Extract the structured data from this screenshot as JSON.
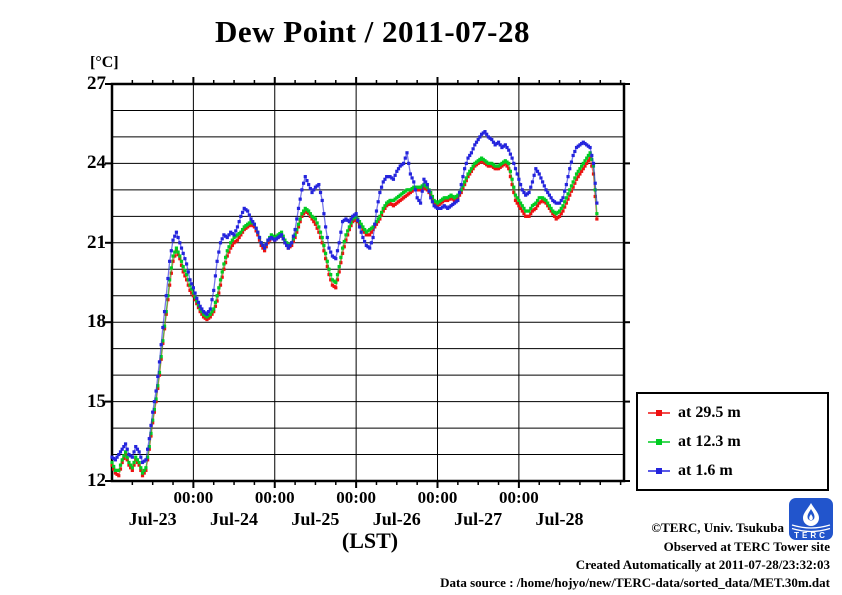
{
  "title": "Dew Point / 2011-07-28",
  "y_unit": "[°C]",
  "x_label": "(LST)",
  "legend": [
    {
      "label": "at 29.5 m",
      "color": "#ee1111"
    },
    {
      "label": "at 12.3 m",
      "color": "#00cc22"
    },
    {
      "label": "at 1.6 m",
      "color": "#2424dd"
    }
  ],
  "footer": {
    "copyright": "©TERC, Univ. Tsukuba",
    "observed": "Observed at TERC Tower site",
    "created": "Created Automatically at 2011-07-28/23:32:03",
    "datasource": "Data source : /home/hojyo/new/TERC-data/sorted_data/MET.30m.dat"
  },
  "logo_text": "TERC",
  "chart_data": {
    "type": "line",
    "title": "Dew Point / 2011-07-28",
    "xlabel": "(LST)",
    "ylabel": "[°C]",
    "ylim": [
      12,
      27
    ],
    "y_major_ticks": [
      12,
      15,
      18,
      21,
      24,
      27
    ],
    "y_grid_step": 1,
    "x_start": "2011-07-23 00:00 LST",
    "x_step_hours": 1,
    "x_hours_range": [
      0,
      151
    ],
    "x_minor_tick_hours": 6,
    "x_major_tick_label": "00:00",
    "x_day_labels": [
      "Jul-23",
      "Jul-24",
      "Jul-25",
      "Jul-26",
      "Jul-27",
      "Jul-28"
    ],
    "grid": true,
    "legend_position": "outside-right-bottom",
    "series": [
      {
        "name": "at 29.5 m",
        "height_m": 29.5,
        "color": "#ee1111",
        "values": [
          12.6,
          12.3,
          12.2,
          12.7,
          13.0,
          12.6,
          12.4,
          12.8,
          12.6,
          12.2,
          12.4,
          13.2,
          14.2,
          15.0,
          16.0,
          17.2,
          18.3,
          19.4,
          20.3,
          20.7,
          20.4,
          19.9,
          19.6,
          19.2,
          19.0,
          18.7,
          18.4,
          18.2,
          18.1,
          18.2,
          18.4,
          18.8,
          19.4,
          20.0,
          20.5,
          20.8,
          21.0,
          21.1,
          21.3,
          21.5,
          21.6,
          21.7,
          21.6,
          21.3,
          20.9,
          20.7,
          21.0,
          21.2,
          21.1,
          21.2,
          21.3,
          21.0,
          20.8,
          20.9,
          21.2,
          21.6,
          22.0,
          22.2,
          22.1,
          21.9,
          21.7,
          21.4,
          21.0,
          20.4,
          19.8,
          19.4,
          19.3,
          19.9,
          20.6,
          21.1,
          21.5,
          21.8,
          21.9,
          21.7,
          21.5,
          21.3,
          21.3,
          21.5,
          21.7,
          21.9,
          22.2,
          22.4,
          22.5,
          22.4,
          22.5,
          22.6,
          22.7,
          22.8,
          22.9,
          23.0,
          23.0,
          23.0,
          23.1,
          23.0,
          22.8,
          22.5,
          22.4,
          22.5,
          22.6,
          22.6,
          22.7,
          22.6,
          22.7,
          22.9,
          23.2,
          23.5,
          23.7,
          23.9,
          24.0,
          24.1,
          24.0,
          23.9,
          23.9,
          23.8,
          23.8,
          23.9,
          24.0,
          23.8,
          23.2,
          22.6,
          22.4,
          22.2,
          22.0,
          22.0,
          22.2,
          22.3,
          22.5,
          22.6,
          22.5,
          22.3,
          22.1,
          21.9,
          22.0,
          22.2,
          22.5,
          22.8,
          23.1,
          23.4,
          23.6,
          23.8,
          24.0,
          24.2,
          23.6,
          21.9
        ]
      },
      {
        "name": "at 12.3 m",
        "height_m": 12.3,
        "color": "#00cc22",
        "values": [
          12.7,
          12.4,
          12.4,
          12.8,
          13.1,
          12.7,
          12.5,
          12.9,
          12.7,
          12.3,
          12.5,
          13.3,
          14.3,
          15.1,
          16.1,
          17.3,
          18.4,
          19.6,
          20.5,
          20.8,
          20.5,
          20.1,
          19.8,
          19.4,
          19.1,
          18.8,
          18.5,
          18.3,
          18.2,
          18.3,
          18.5,
          19.0,
          19.6,
          20.2,
          20.7,
          21.0,
          21.2,
          21.3,
          21.4,
          21.6,
          21.7,
          21.8,
          21.7,
          21.4,
          21.0,
          20.8,
          21.1,
          21.3,
          21.2,
          21.3,
          21.4,
          21.1,
          20.9,
          21.0,
          21.3,
          21.7,
          22.1,
          22.3,
          22.2,
          22.0,
          21.9,
          21.6,
          21.2,
          20.6,
          20.0,
          19.6,
          19.5,
          20.1,
          20.8,
          21.3,
          21.6,
          21.9,
          22.0,
          21.8,
          21.6,
          21.4,
          21.5,
          21.6,
          21.8,
          22.0,
          22.3,
          22.5,
          22.6,
          22.6,
          22.7,
          22.8,
          22.9,
          23.0,
          23.0,
          23.1,
          23.1,
          23.1,
          23.2,
          23.1,
          22.9,
          22.6,
          22.5,
          22.6,
          22.7,
          22.7,
          22.8,
          22.7,
          22.8,
          23.0,
          23.3,
          23.6,
          23.8,
          24.0,
          24.1,
          24.2,
          24.1,
          24.0,
          24.0,
          23.9,
          23.9,
          24.0,
          24.1,
          24.0,
          23.4,
          22.8,
          22.6,
          22.4,
          22.2,
          22.2,
          22.4,
          22.5,
          22.7,
          22.7,
          22.6,
          22.4,
          22.2,
          22.1,
          22.2,
          22.4,
          22.7,
          23.0,
          23.3,
          23.6,
          23.8,
          24.0,
          24.2,
          24.4,
          23.9,
          22.1
        ]
      },
      {
        "name": "at 1.6 m",
        "height_m": 1.6,
        "color": "#2424dd",
        "values": [
          12.9,
          12.8,
          13.0,
          13.2,
          13.4,
          13.0,
          12.9,
          13.3,
          13.1,
          12.7,
          12.8,
          13.6,
          14.6,
          15.4,
          16.5,
          17.8,
          19.0,
          20.3,
          21.1,
          21.4,
          21.0,
          20.6,
          20.2,
          19.6,
          19.3,
          18.9,
          18.6,
          18.4,
          18.3,
          18.5,
          19.2,
          20.3,
          21.0,
          21.3,
          21.2,
          21.4,
          21.3,
          21.6,
          22.0,
          22.3,
          22.2,
          21.9,
          21.7,
          21.4,
          21.0,
          20.8,
          21.1,
          21.2,
          21.1,
          21.2,
          21.3,
          21.0,
          20.8,
          21.0,
          21.5,
          22.3,
          23.0,
          23.5,
          23.2,
          22.9,
          23.1,
          23.2,
          22.6,
          21.6,
          20.8,
          20.5,
          20.4,
          21.0,
          21.8,
          21.9,
          21.8,
          22.0,
          22.1,
          21.6,
          21.2,
          20.9,
          20.8,
          21.2,
          22.2,
          22.9,
          23.3,
          23.5,
          23.5,
          23.4,
          23.7,
          23.9,
          24.0,
          24.4,
          23.6,
          23.3,
          22.7,
          22.5,
          23.4,
          23.2,
          22.7,
          22.4,
          22.3,
          22.3,
          22.4,
          22.3,
          22.4,
          22.5,
          22.6,
          23.2,
          23.8,
          24.2,
          24.4,
          24.7,
          24.9,
          25.1,
          25.2,
          25.0,
          24.9,
          24.7,
          24.8,
          24.6,
          24.7,
          24.5,
          24.2,
          23.8,
          23.4,
          23.0,
          22.8,
          22.9,
          23.3,
          23.8,
          23.6,
          23.3,
          23.0,
          22.8,
          22.6,
          22.5,
          22.5,
          22.7,
          23.2,
          23.8,
          24.3,
          24.6,
          24.7,
          24.8,
          24.7,
          24.6,
          24.0,
          22.5
        ]
      }
    ]
  }
}
